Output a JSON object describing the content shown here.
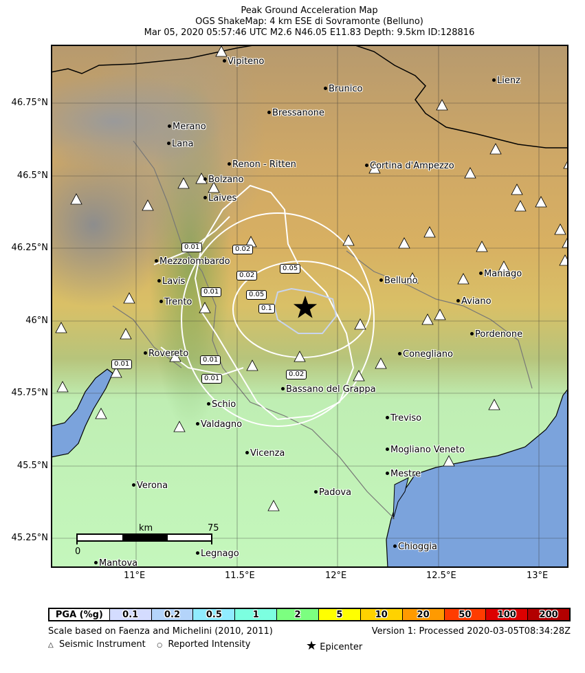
{
  "title": {
    "line1": "Peak Ground Acceleration Map",
    "line2": "OGS ShakeMap: 4 km ESE di Sovramonte (Belluno)",
    "line3": "Mar 05, 2020 05:57:46 UTC M2.6 N46.05 E11.83 Depth: 9.5km ID:128816"
  },
  "axes": {
    "lon_ticks": [
      "11°E",
      "11.5°E",
      "12°E",
      "12.5°E",
      "13°E"
    ],
    "lat_ticks": [
      "46.75°N",
      "46.5°N",
      "46.25°N",
      "46°N",
      "45.75°N",
      "45.5°N",
      "45.25°N"
    ]
  },
  "cities": [
    "Vipiteno",
    "Lienz",
    "Brunico",
    "Bressanone",
    "Merano",
    "Lana",
    "Renon - Ritten",
    "Cortina d'Ampezzo",
    "Bolzano",
    "Laives",
    "Mezzolombardo",
    "Belluno",
    "Maniago",
    "Lavis",
    "Trento",
    "Aviano",
    "Pordenone",
    "Rovereto",
    "Conegliano",
    "Bassano del Grappa",
    "Schio",
    "Treviso",
    "Valdagno",
    "Mogliano Veneto",
    "Vicenza",
    "Mestre",
    "Verona",
    "Padova",
    "Chioggia",
    "Mantova",
    "Legnago"
  ],
  "contour_labels": [
    "0.01",
    "0.02",
    "0.02",
    "0.05",
    "0.01",
    "0.05",
    "0.1",
    "0.01",
    "0.01",
    "0.01",
    "0.02"
  ],
  "scale_bar": {
    "unit": "km",
    "min": "0",
    "max": "75"
  },
  "epicenter": {
    "lat": 46.05,
    "lon": 11.83
  },
  "colors": {
    "water": "#7ba3dc",
    "contour": "#ffffff",
    "inner_contour": "#c8d4ee"
  },
  "legend": {
    "items": [
      {
        "label": "PGA (%g)",
        "color": "#ffffff"
      },
      {
        "label": "0.1",
        "color": "#d4dcff"
      },
      {
        "label": "0.2",
        "color": "#b4d4fa"
      },
      {
        "label": "0.5",
        "color": "#90ecff"
      },
      {
        "label": "1",
        "color": "#7cffe0"
      },
      {
        "label": "2",
        "color": "#7cff80"
      },
      {
        "label": "5",
        "color": "#ffff00"
      },
      {
        "label": "10",
        "color": "#ffd200"
      },
      {
        "label": "20",
        "color": "#ff9a00"
      },
      {
        "label": "50",
        "color": "#ff3c00"
      },
      {
        "label": "100",
        "color": "#dc0000"
      },
      {
        "label": "200",
        "color": "#b20000"
      }
    ]
  },
  "footer": {
    "scale_note": "Scale based on Faenza and Michelini (2010, 2011)",
    "version": "Version 1: Processed 2020-03-05T08:34:28Z",
    "instrument_symbol": "△",
    "instrument": "Seismic Instrument",
    "intensity_symbol": "○",
    "intensity": "Reported Intensity",
    "epicenter_symbol": "★",
    "epicenter": "Epicenter"
  }
}
